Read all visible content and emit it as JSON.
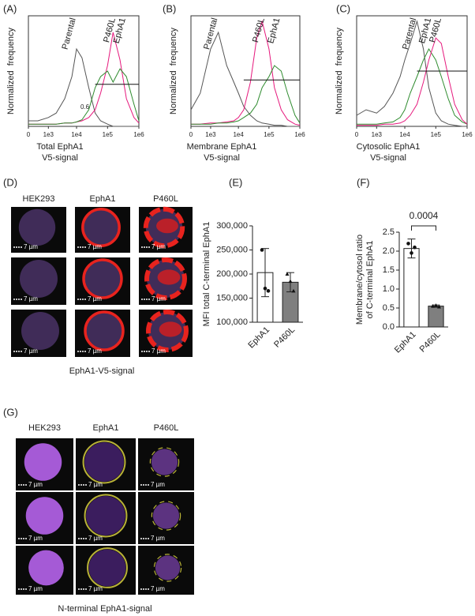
{
  "chart_data": [
    {
      "type": "line",
      "label": "(A)",
      "ylabel": "Normalized  frequency",
      "xlabel": [
        "Total EphA1",
        "V5-signal"
      ],
      "xscale": "biexponential",
      "xlim": [
        0,
        1000000
      ],
      "xticks": [
        0,
        {
          "value": 1000,
          "label": "1e3"
        },
        {
          "value": 10000,
          "label": "1e4"
        },
        {
          "value": 100000,
          "label": "1e5"
        },
        {
          "value": 1000000,
          "label": "1e6"
        }
      ],
      "ylim": [
        0,
        100
      ],
      "x": [
        0,
        300,
        1000,
        2000,
        4000,
        7000,
        10000,
        15000,
        25000,
        40000,
        60000,
        100000,
        150000,
        250000,
        400000,
        700000,
        1000000
      ],
      "series": [
        {
          "name": "Parental",
          "color": "#555555",
          "values": [
            5,
            5,
            8,
            12,
            25,
            45,
            70,
            62,
            35,
            12,
            5,
            2,
            0,
            0,
            0,
            0,
            0
          ]
        },
        {
          "name": "P460L",
          "color": "#e6197d",
          "values": [
            2,
            2,
            2,
            2,
            3,
            3,
            4,
            5,
            8,
            15,
            30,
            55,
            85,
            60,
            25,
            8,
            3
          ]
        },
        {
          "name": "EphA1",
          "color": "#2e8b2e",
          "values": [
            2,
            2,
            2,
            2,
            3,
            3,
            4,
            6,
            15,
            35,
            45,
            50,
            40,
            52,
            45,
            20,
            5
          ]
        }
      ],
      "gate": {
        "x": [
          40000,
          1000000
        ],
        "y": 38
      },
      "annotation": "0.6"
    },
    {
      "type": "line",
      "label": "(B)",
      "ylabel": "Normalized  frequency",
      "xlabel": [
        "Membrane EphA1",
        "V5-signal"
      ],
      "xscale": "biexponential",
      "xlim": [
        0,
        1000000
      ],
      "xticks": [
        0,
        {
          "value": 1000,
          "label": "1e3"
        },
        {
          "value": 10000,
          "label": "1e4"
        },
        {
          "value": 100000,
          "label": "1e5"
        },
        {
          "value": 1000000,
          "label": "1e6"
        }
      ],
      "ylim": [
        0,
        100
      ],
      "x": [
        0,
        300,
        1000,
        2000,
        4000,
        7000,
        10000,
        15000,
        25000,
        40000,
        60000,
        100000,
        150000,
        250000,
        400000,
        700000,
        1000000
      ],
      "series": [
        {
          "name": "Parental",
          "color": "#555555",
          "values": [
            15,
            30,
            70,
            85,
            55,
            40,
            30,
            18,
            10,
            5,
            3,
            2,
            1,
            1,
            0,
            0,
            0
          ]
        },
        {
          "name": "P460L",
          "color": "#e6197d",
          "values": [
            2,
            2,
            3,
            3,
            4,
            5,
            8,
            15,
            40,
            80,
            95,
            70,
            35,
            15,
            6,
            2,
            1
          ]
        },
        {
          "name": "EphA1",
          "color": "#2e8b2e",
          "values": [
            2,
            2,
            2,
            3,
            3,
            4,
            5,
            8,
            12,
            20,
            35,
            45,
            55,
            50,
            30,
            10,
            3
          ]
        }
      ],
      "gate": {
        "x": [
          15000,
          1000000
        ],
        "y": 42
      }
    },
    {
      "type": "line",
      "label": "(C)",
      "ylabel": "Normalized  frequency",
      "xlabel": [
        "Cytosolic EphA1",
        "V5-signal"
      ],
      "xscale": "biexponential",
      "xlim": [
        0,
        1000000
      ],
      "xticks": [
        0,
        {
          "value": 1000,
          "label": "1e3"
        },
        {
          "value": 10000,
          "label": "1e4"
        },
        {
          "value": 100000,
          "label": "1e5"
        },
        {
          "value": 1000000,
          "label": "1e6"
        }
      ],
      "ylim": [
        0,
        100
      ],
      "x": [
        0,
        300,
        1000,
        2000,
        4000,
        7000,
        10000,
        15000,
        25000,
        40000,
        60000,
        100000,
        150000,
        250000,
        400000,
        700000,
        1000000
      ],
      "series": [
        {
          "name": "Parental",
          "color": "#555555",
          "values": [
            10,
            15,
            12,
            18,
            30,
            45,
            60,
            75,
            95,
            70,
            35,
            12,
            5,
            2,
            1,
            0,
            0
          ]
        },
        {
          "name": "EphA1",
          "color": "#2e8b2e",
          "values": [
            2,
            2,
            2,
            3,
            4,
            8,
            15,
            30,
            45,
            60,
            70,
            60,
            45,
            25,
            10,
            4,
            2
          ]
        },
        {
          "name": "P460L",
          "color": "#e6197d",
          "values": [
            1,
            1,
            1,
            2,
            2,
            3,
            5,
            10,
            20,
            40,
            60,
            80,
            75,
            45,
            20,
            6,
            2
          ]
        }
      ],
      "gate": {
        "x": [
          25000,
          1000000
        ],
        "y": 50
      }
    },
    {
      "type": "bar",
      "label": "(E)",
      "ylabel": "MFI total C-terminal EphA1",
      "categories": [
        "EphA1",
        "P460L"
      ],
      "values": [
        203000,
        183000
      ],
      "errors": [
        50000,
        20000
      ],
      "colors": [
        "#ffffff",
        "#7f7f7f"
      ],
      "points": [
        [
          250000,
          170000,
          165000
        ],
        [
          200000,
          185000,
          165000
        ]
      ],
      "markers": [
        "circle",
        "triangle"
      ],
      "ylim": [
        100000,
        300000
      ],
      "yticks": [
        {
          "value": 100000,
          "label": "100,000"
        },
        {
          "value": 150000,
          "label": "150,000"
        },
        {
          "value": 200000,
          "label": "200,000"
        },
        {
          "value": 250000,
          "label": "250,000"
        },
        {
          "value": 300000,
          "label": "300,000"
        }
      ]
    },
    {
      "type": "bar",
      "label": "(F)",
      "ylabel": [
        "Membrane/cytosol ratio",
        "of C-terminal EphA1"
      ],
      "categories": [
        "EphA1",
        "P460L"
      ],
      "values": [
        2.07,
        0.55
      ],
      "errors": [
        0.25,
        0.03
      ],
      "colors": [
        "#ffffff",
        "#7f7f7f"
      ],
      "points": [
        [
          2.2,
          1.95,
          2.1
        ],
        [
          0.55,
          0.57,
          0.53
        ]
      ],
      "markers": [
        "circle",
        "triangle"
      ],
      "ylim": [
        0,
        2.5
      ],
      "yticks": [
        {
          "value": 0,
          "label": "0.0"
        },
        0.5,
        {
          "value": 1,
          "label": "1.0"
        },
        1.5,
        {
          "value": 2,
          "label": "2.0"
        },
        2.5
      ],
      "significance": "0.0004"
    }
  ],
  "panels": [
    {
      "label": "(D)",
      "columns": [
        "HEK293",
        "EphA1",
        "P460L"
      ],
      "scale_bar": "7 µm",
      "caption": "EphA1-V5-signal"
    },
    {
      "label": "(G)",
      "columns": [
        "HEK293",
        "EphA1",
        "P460L"
      ],
      "scale_bar": "7 µm",
      "caption": "N-terminal EphA1-signal"
    }
  ]
}
